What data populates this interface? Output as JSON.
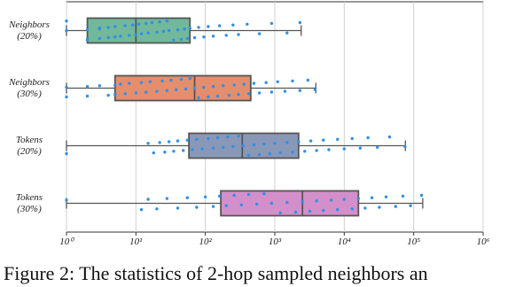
{
  "chart_data": {
    "type": "box",
    "categories": [
      "Neighbors\n(20%)",
      "Neighbors\n(30%)",
      "Tokens\n(20%)",
      "Tokens\n(30%)"
    ],
    "log_x": true,
    "grid": true,
    "xlim": [
      1,
      1000000
    ],
    "xticks": [
      {
        "value": 1,
        "label": "10⁰"
      },
      {
        "value": 10,
        "label": "10¹"
      },
      {
        "value": 100,
        "label": "10²"
      },
      {
        "value": 1000,
        "label": "10³"
      },
      {
        "value": 10000,
        "label": "10⁴"
      },
      {
        "value": 100000,
        "label": "10⁵"
      },
      {
        "value": 1000000,
        "label": "10⁶"
      }
    ],
    "point_color": "#2f8fe8",
    "boxes": [
      {
        "min": 1,
        "q1": 2,
        "median": 10,
        "q3": 60,
        "max": 2400,
        "color": "#72b89a",
        "points": [
          1,
          1,
          2,
          2,
          2,
          3,
          3,
          3,
          4,
          4,
          5,
          5,
          6,
          7,
          8,
          9,
          10,
          11,
          12,
          14,
          15,
          17,
          20,
          22,
          25,
          28,
          30,
          35,
          40,
          45,
          50,
          55,
          60,
          70,
          80,
          95,
          110,
          130,
          160,
          200,
          250,
          300,
          400,
          600,
          900,
          1500,
          2300
        ]
      },
      {
        "min": 1,
        "q1": 5,
        "median": 70,
        "q3": 450,
        "max": 3900,
        "color": "#e48e6e",
        "points": [
          1,
          1,
          2,
          2,
          3,
          4,
          5,
          5,
          6,
          7,
          8,
          10,
          12,
          14,
          16,
          20,
          24,
          28,
          32,
          38,
          45,
          52,
          60,
          70,
          80,
          95,
          110,
          130,
          150,
          180,
          220,
          260,
          300,
          360,
          420,
          500,
          600,
          750,
          900,
          1100,
          1400,
          1800,
          2300,
          3000,
          3800
        ]
      },
      {
        "min": 1,
        "q1": 58,
        "median": 340,
        "q3": 2200,
        "max": 76000,
        "color": "#8a98b8",
        "points": [
          1,
          15,
          18,
          22,
          26,
          30,
          35,
          40,
          48,
          55,
          65,
          75,
          90,
          110,
          130,
          150,
          180,
          210,
          250,
          300,
          350,
          420,
          500,
          600,
          700,
          850,
          1000,
          1200,
          1500,
          1800,
          2200,
          2700,
          3300,
          4000,
          5000,
          6000,
          8000,
          10000,
          13000,
          17000,
          22000,
          30000,
          45000,
          75000
        ]
      },
      {
        "min": 1,
        "q1": 167,
        "median": 2500,
        "q3": 16000,
        "max": 135000,
        "color": "#d38fca",
        "points": [
          1,
          12,
          15,
          20,
          28,
          40,
          55,
          75,
          100,
          130,
          160,
          200,
          260,
          330,
          420,
          550,
          700,
          900,
          1200,
          1500,
          2000,
          2500,
          3200,
          4000,
          5000,
          6500,
          8000,
          10000,
          13000,
          16000,
          20000,
          25000,
          32000,
          40000,
          55000,
          70000,
          90000,
          130000
        ]
      }
    ],
    "caption": "Figure 2: The statistics of 2-hop sampled neighbors an"
  }
}
